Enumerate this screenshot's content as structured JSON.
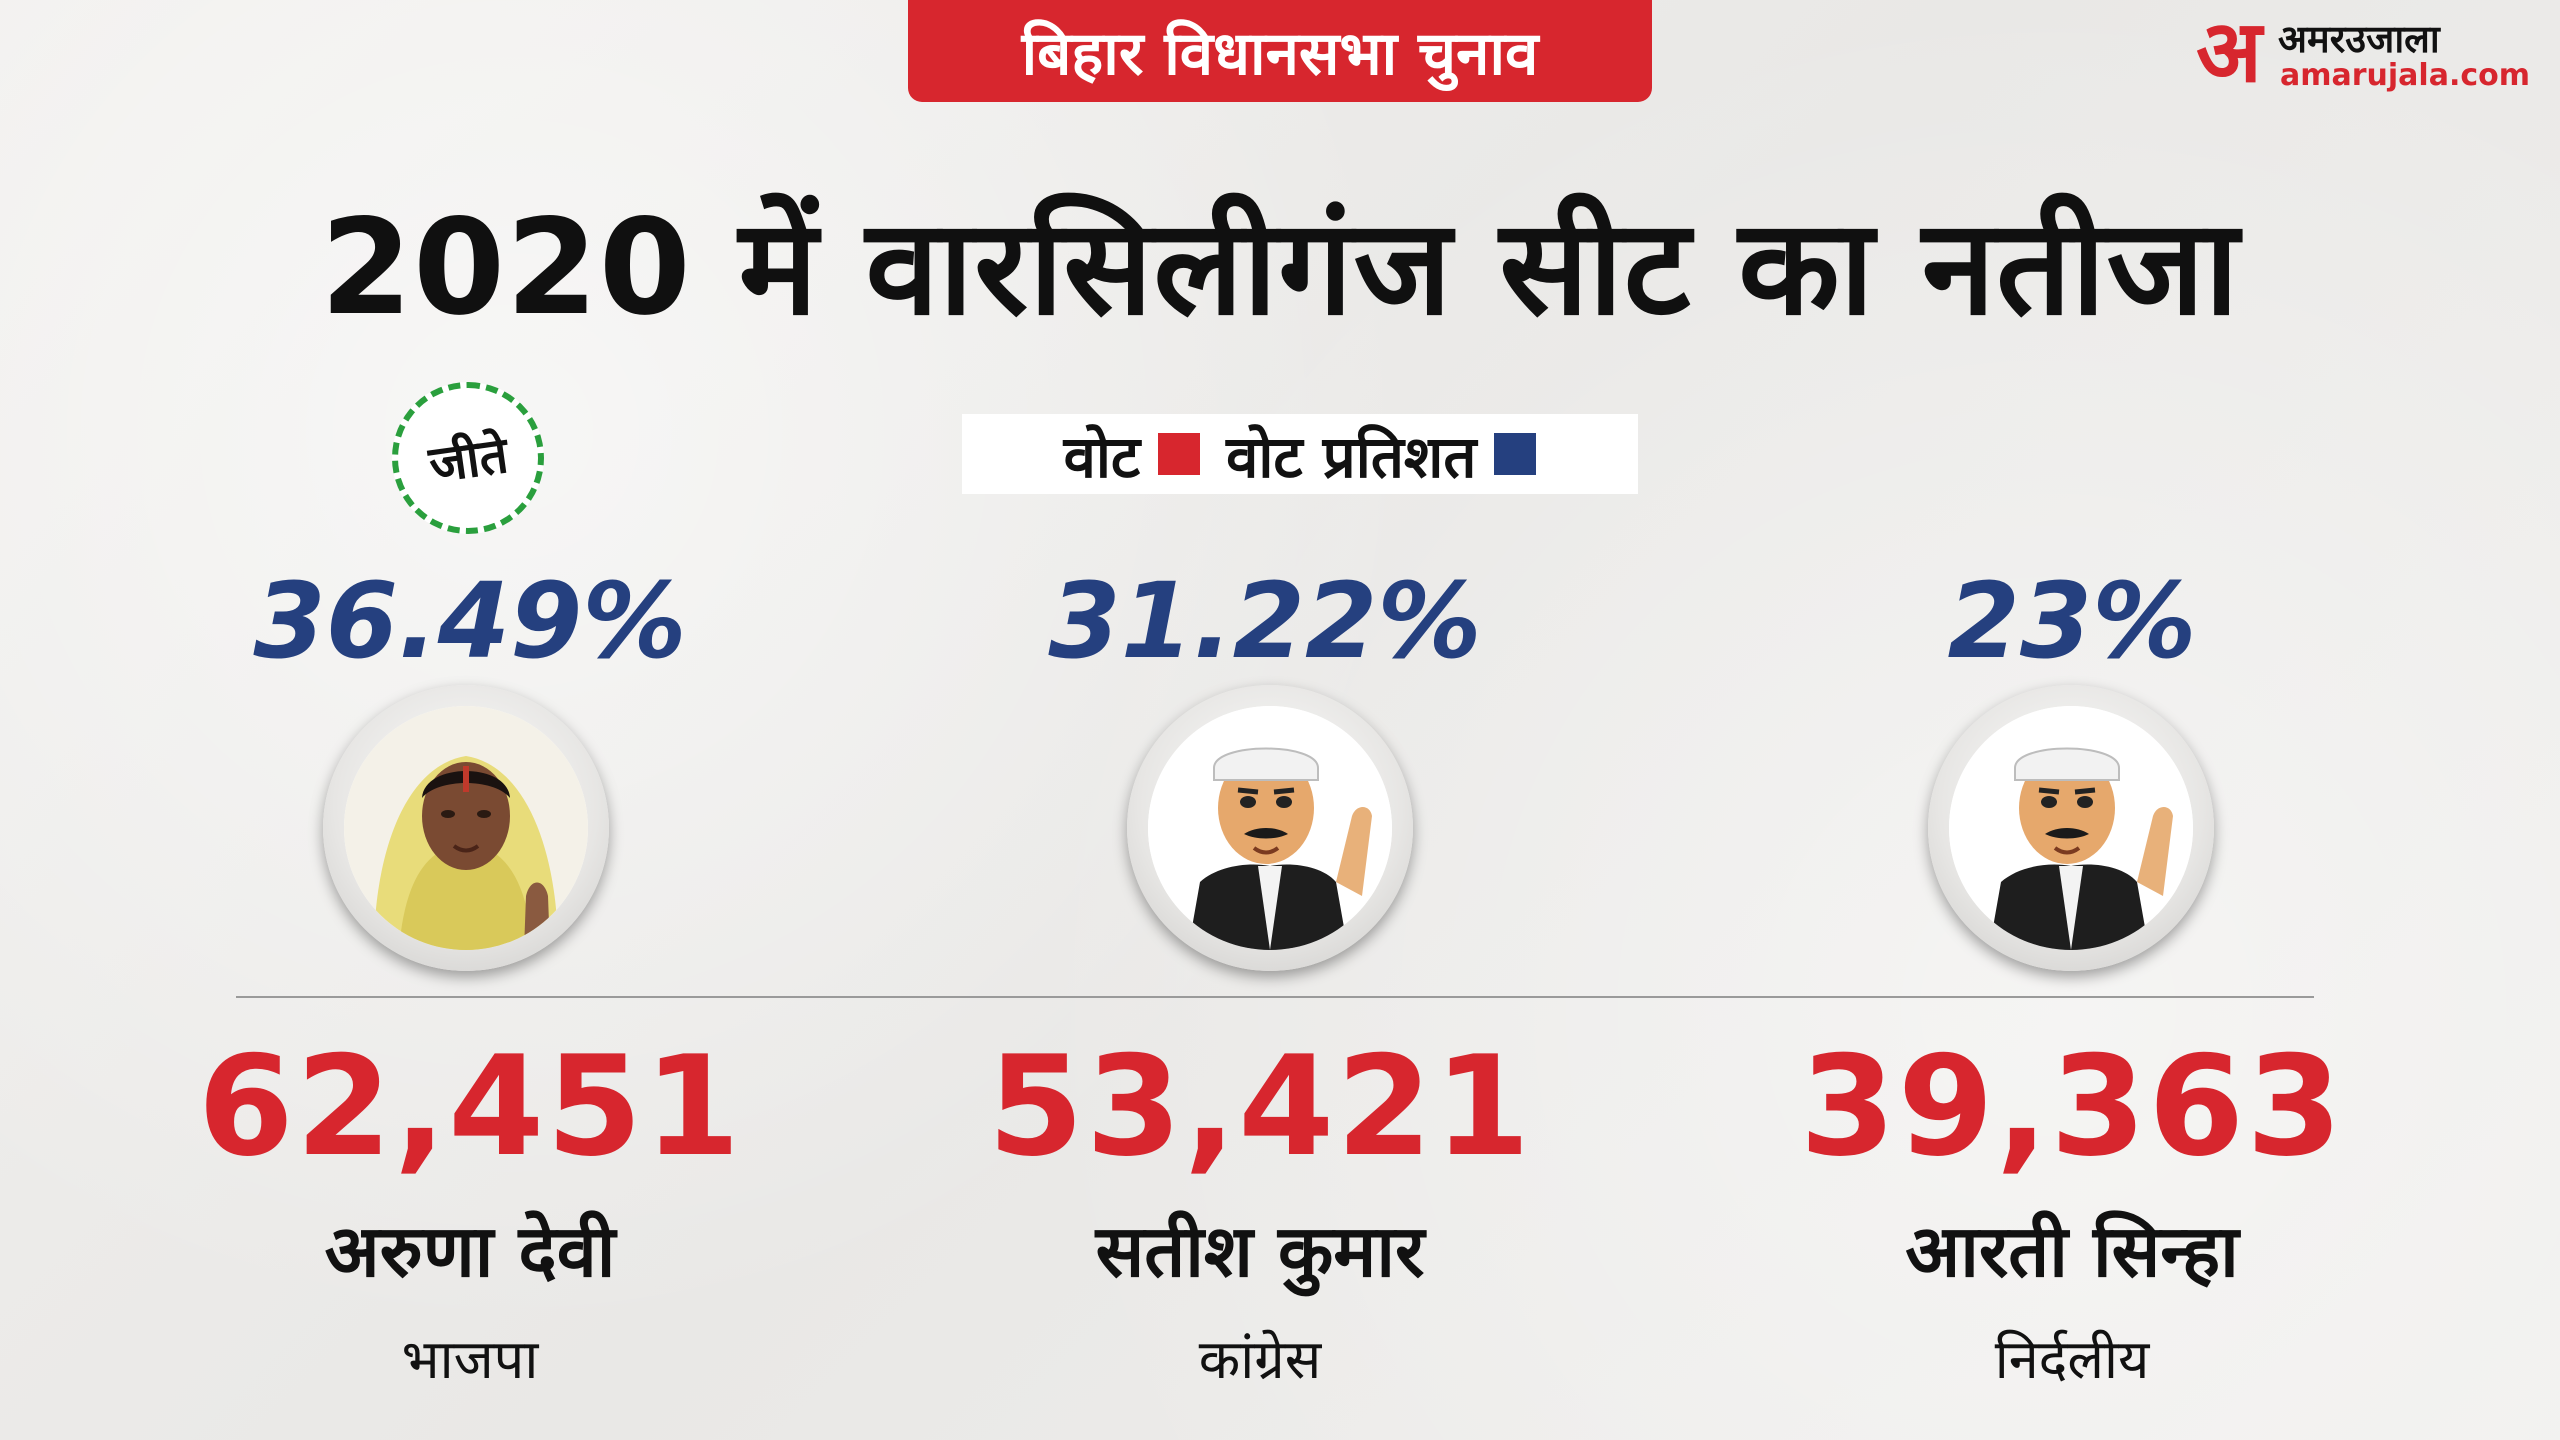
{
  "header": {
    "badge": "बिहार विधानसभा चुनाव"
  },
  "logo": {
    "mark": "अ",
    "name": "अमरउजाला",
    "url": "amarujala.com"
  },
  "title": "2020 में  वारसिलीगंज सीट का नतीजा",
  "legend": {
    "votes_label": "वोट",
    "votes_color": "#d7262e",
    "percent_label": "वोट प्रतिशत",
    "percent_color": "#25407f"
  },
  "winner_seal": "जीते",
  "candidates": [
    {
      "percent": "36.49%",
      "votes": "62,451",
      "name": "अरुणा देवी",
      "party": "भाजपा",
      "photo": "woman-photo"
    },
    {
      "percent": "31.22%",
      "votes": "53,421",
      "name": "सतीश कुमार",
      "party": "कांग्रेस",
      "photo": "man-cartoon"
    },
    {
      "percent": "23%",
      "votes": "39,363",
      "name": "आरती सिन्हा",
      "party": "निर्दलीय",
      "photo": "man-cartoon"
    }
  ]
}
